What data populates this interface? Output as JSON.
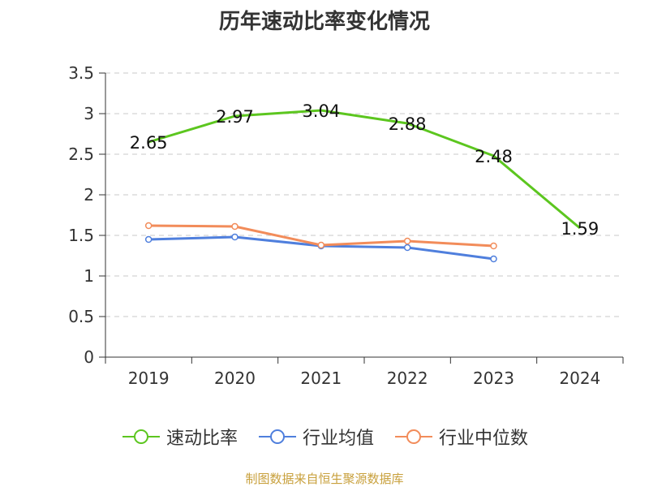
{
  "chart_data": {
    "type": "line",
    "title": "历年速动比率变化情况",
    "categories": [
      "2019",
      "2020",
      "2021",
      "2022",
      "2023",
      "2024"
    ],
    "ylim": [
      0,
      3.5
    ],
    "yticks": [
      "0",
      "0.5",
      "1",
      "1.5",
      "2",
      "2.5",
      "3",
      "3.5"
    ],
    "grid": true,
    "legend_position": "bottom",
    "series": [
      {
        "name": "速动比率",
        "color": "#5cc61f",
        "values": [
          2.65,
          2.97,
          3.04,
          2.88,
          2.48,
          1.59
        ],
        "labels": [
          "2.65",
          "2.97",
          "3.04",
          "2.88",
          "2.48",
          "1.59"
        ]
      },
      {
        "name": "行业均值",
        "color": "#4f7fdd",
        "values": [
          1.45,
          1.48,
          1.37,
          1.35,
          1.21,
          null
        ]
      },
      {
        "name": "行业中位数",
        "color": "#f28c5a",
        "values": [
          1.62,
          1.61,
          1.38,
          1.43,
          1.37,
          null
        ]
      }
    ]
  },
  "footer": {
    "source": "制图数据来自恒生聚源数据库"
  }
}
